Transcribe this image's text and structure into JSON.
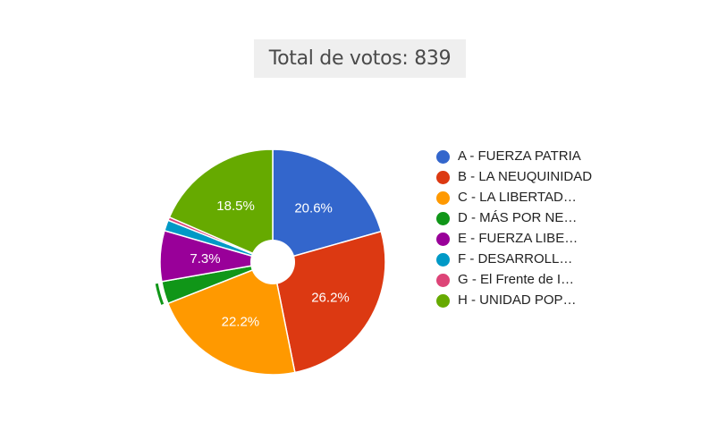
{
  "header": {
    "title": "Total de votos: 839"
  },
  "chart_data": {
    "type": "pie",
    "title": "Total de votos: 839",
    "total": 839,
    "donut_hole": true,
    "legend_position": "right",
    "selected": "D - MÁS POR NE…",
    "categories": [
      "A - FUERZA PATRIA",
      "B - LA NEUQUINIDAD",
      "C - LA LIBERTAD…",
      "D - MÁS POR NE…",
      "E - FUERZA LIBE…",
      "F - DESARROLL…",
      "G - El Frente de I…",
      "H - UNIDAD POP…"
    ],
    "values": [
      173,
      220,
      186,
      27,
      61,
      13,
      4,
      155
    ],
    "percent_labels": [
      "20.6%",
      "26.2%",
      "22.2%",
      "",
      "7.3%",
      "",
      "",
      "18.5%"
    ],
    "colors": [
      "#3366cc",
      "#dc3912",
      "#ff9900",
      "#109618",
      "#990099",
      "#0099c6",
      "#dd4477",
      "#66aa00"
    ]
  },
  "legend": {
    "items": [
      {
        "label": "A - FUERZA PATRIA",
        "color": "#3366cc"
      },
      {
        "label": "B - LA NEUQUINIDAD",
        "color": "#dc3912"
      },
      {
        "label": "C - LA LIBERTAD…",
        "color": "#ff9900"
      },
      {
        "label": "D - MÁS POR NE…",
        "color": "#109618"
      },
      {
        "label": "E - FUERZA LIBE…",
        "color": "#990099"
      },
      {
        "label": "F - DESARROLL…",
        "color": "#0099c6"
      },
      {
        "label": "G - El Frente de I…",
        "color": "#dd4477"
      },
      {
        "label": "H - UNIDAD POP…",
        "color": "#66aa00"
      }
    ]
  }
}
